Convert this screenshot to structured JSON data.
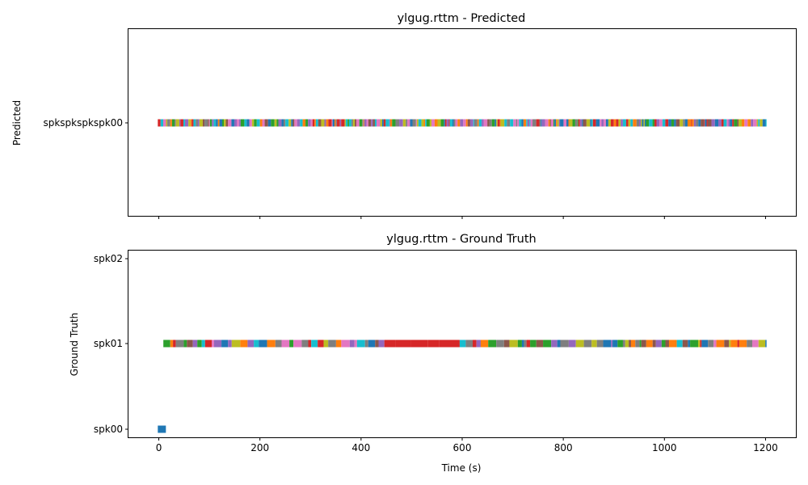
{
  "chart_data": [
    {
      "type": "timeline",
      "title": "ylgug.rttm - Predicted",
      "ylabel": "Predicted",
      "xlabel": "",
      "xlim": [
        -60,
        1260
      ],
      "xticks": [
        0,
        200,
        400,
        600,
        800,
        1000,
        1200
      ],
      "show_xtick_labels": false,
      "categories": [
        "spkspkspkspk00"
      ],
      "segment_range": [
        -2,
        1202
      ],
      "segment_lane": "spkspkspkspk00",
      "grid": false
    },
    {
      "type": "timeline",
      "title": "ylgug.rttm - Ground Truth",
      "ylabel": "Ground Truth",
      "xlabel": "Time (s)",
      "xlim": [
        -60,
        1260
      ],
      "xticks": [
        0,
        200,
        400,
        600,
        800,
        1000,
        1200
      ],
      "show_xtick_labels": true,
      "categories": [
        "spk00",
        "spk01",
        "spk02"
      ],
      "segments": [
        {
          "lane": "spk00",
          "start": -2,
          "end": 14,
          "color": "#1f77b4"
        }
      ],
      "segment_range": [
        9,
        1202
      ],
      "segment_lane": "spk01",
      "grid": false
    }
  ],
  "palette": [
    "#1f77b4",
    "#ff7f0e",
    "#2ca02c",
    "#d62728",
    "#9467bd",
    "#8c564b",
    "#e377c2",
    "#7f7f7f",
    "#bcbd22",
    "#17becf"
  ]
}
